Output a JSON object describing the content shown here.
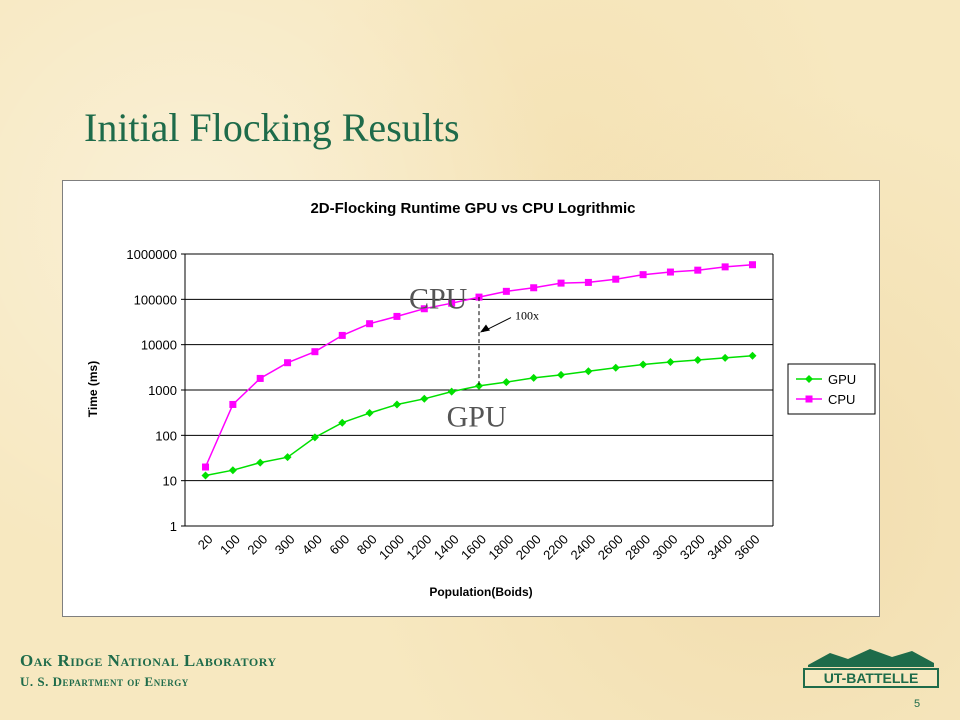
{
  "slide": {
    "title": "Initial Flocking Results",
    "footer_line1": "Oak Ridge National Laboratory",
    "footer_line2": "U. S. Department of Energy",
    "logo_text": "UT-BATTELLE",
    "page_number": "5"
  },
  "colors": {
    "title": "#1e6b4a",
    "gpu": "#00e000",
    "cpu": "#ff00ff",
    "logo": "#1e6b4a"
  },
  "chart_data": {
    "type": "line",
    "title": "2D-Flocking Runtime GPU vs CPU Logrithmic",
    "xlabel": "Population(Boids)",
    "ylabel": "Time (ms)",
    "yscale": "log",
    "ylim": [
      1,
      1000000
    ],
    "yticks": [
      "1",
      "10",
      "100",
      "1000",
      "10000",
      "100000",
      "1000000"
    ],
    "categories": [
      "20",
      "100",
      "200",
      "300",
      "400",
      "600",
      "800",
      "1000",
      "1200",
      "1400",
      "1600",
      "1800",
      "2000",
      "2200",
      "2400",
      "2600",
      "2800",
      "3000",
      "3200",
      "3400",
      "3600"
    ],
    "series": [
      {
        "name": "GPU",
        "marker": "diamond",
        "values": [
          13,
          17,
          25,
          33,
          90,
          190,
          310,
          480,
          640,
          920,
          1230,
          1490,
          1850,
          2150,
          2600,
          3100,
          3650,
          4150,
          4600,
          5100,
          5700
        ]
      },
      {
        "name": "CPU",
        "marker": "square",
        "values": [
          20,
          480,
          1800,
          4000,
          7000,
          16000,
          29000,
          42000,
          62000,
          82000,
          112000,
          150000,
          180000,
          228000,
          236000,
          278000,
          350000,
          400000,
          440000,
          520000,
          580000
        ]
      }
    ],
    "legend_position": "right",
    "grid": "horizontal",
    "annotations": {
      "cpu_label": "CPU",
      "gpu_label": "GPU",
      "ratio_label": "100x"
    }
  }
}
